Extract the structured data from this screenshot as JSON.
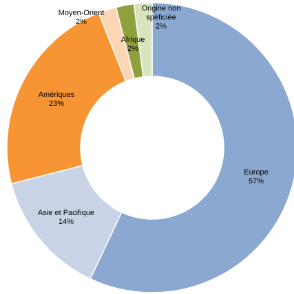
{
  "chart_data": {
    "type": "donut",
    "categories": [
      "Europe",
      "Asie et Pacifique",
      "Amériques",
      "Moyen-Orient",
      "Afrique",
      "Origine non spéficiée"
    ],
    "values": [
      57,
      14,
      23,
      2,
      2,
      2
    ],
    "value_labels": [
      "57%",
      "14%",
      "23%",
      "2%",
      "2%",
      "2%"
    ],
    "colors": [
      "#8aa8d0",
      "#c8d4e5",
      "#f79433",
      "#fcd5b4",
      "#8fa03c",
      "#d7e4bd"
    ]
  }
}
